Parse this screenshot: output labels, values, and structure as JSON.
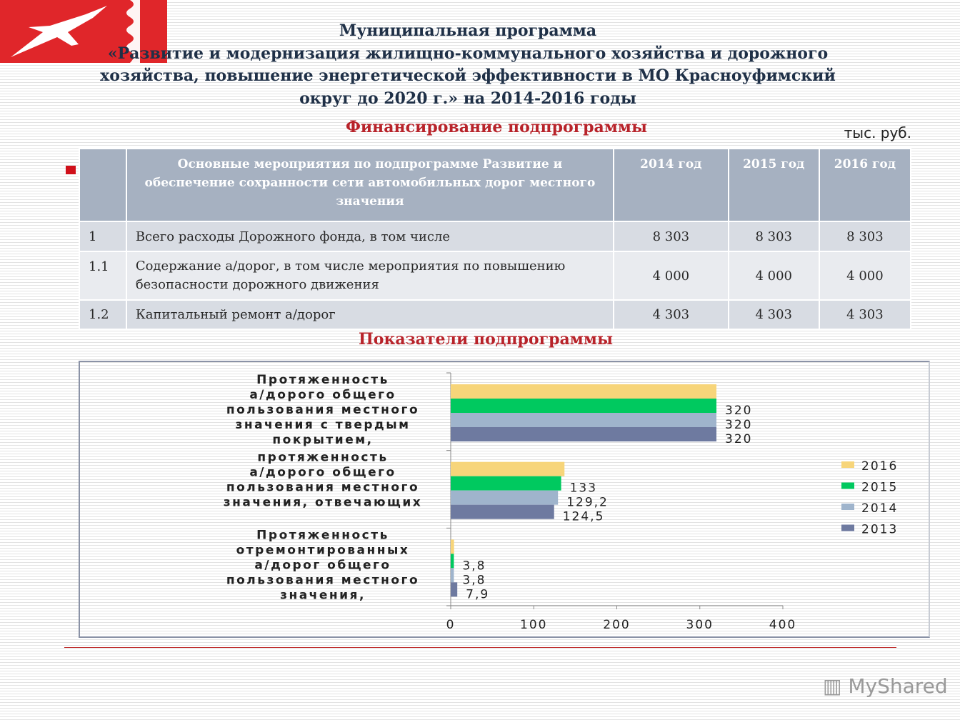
{
  "header": {
    "title_lines": [
      "Муниципальная программа",
      "«Развитие и модернизация жилищно-коммунального хозяйства и дорожного",
      "хозяйства, повышение энергетической эффективности в МО Красноуфимский",
      "округ до 2020 г.» на 2014-2016 годы"
    ],
    "financing_title": "Финансирование подпрограммы",
    "unit": "тыс. руб.",
    "indicators_title": "Показатели подпрограммы"
  },
  "logo": {
    "colors": {
      "background": "#e0262a",
      "bird": "#ffffff"
    }
  },
  "table": {
    "headers": [
      "",
      "Основные мероприятия по подпрограмме Развитие и обеспечение сохранности сети автомобильных дорог местного значения",
      "2014 год",
      "2015 год",
      "2016 год"
    ],
    "rows": [
      [
        "1",
        "Всего расходы Дорожного фонда, в том числе",
        "8 303",
        "8  303",
        "8 303"
      ],
      [
        "1.1",
        "Содержание а/дорог, в том числе мероприятия по повышению безопасности дорожного движения",
        "4 000",
        "4 000",
        "4 000"
      ],
      [
        "1.2",
        "Капитальный ремонт а/дорог",
        "4 303",
        "4 303",
        "4 303"
      ]
    ]
  },
  "chart_data": {
    "type": "bar",
    "orientation": "horizontal",
    "categories": [
      "Протяженность а/дорого общего пользования местного значения с твердым покрытием,",
      "протяженность а/дорого общего пользования местного значения, отвечающих",
      "Протяженность отремонтированных а/дорог общего пользования местного значения,"
    ],
    "series": [
      {
        "name": "2016",
        "color": "#f7d57a",
        "values": [
          320,
          137,
          4
        ],
        "labels": [
          "",
          "",
          ""
        ]
      },
      {
        "name": "2015",
        "color": "#00c95f",
        "values": [
          320,
          133,
          3.8
        ],
        "labels": [
          "320",
          "133",
          "3,8"
        ]
      },
      {
        "name": "2014",
        "color": "#9fb4cc",
        "values": [
          320,
          129.2,
          3.8
        ],
        "labels": [
          "320",
          "129,2",
          "3,8"
        ]
      },
      {
        "name": "2013",
        "color": "#6e7aa0",
        "values": [
          320,
          124.5,
          7.9
        ],
        "labels": [
          "320",
          "124,5",
          "7,9"
        ]
      }
    ],
    "xlim": [
      0,
      400
    ],
    "xticks": [
      "0",
      "100",
      "200",
      "300",
      "400"
    ],
    "legend": "right",
    "grid": false
  },
  "watermark": "MyShared"
}
